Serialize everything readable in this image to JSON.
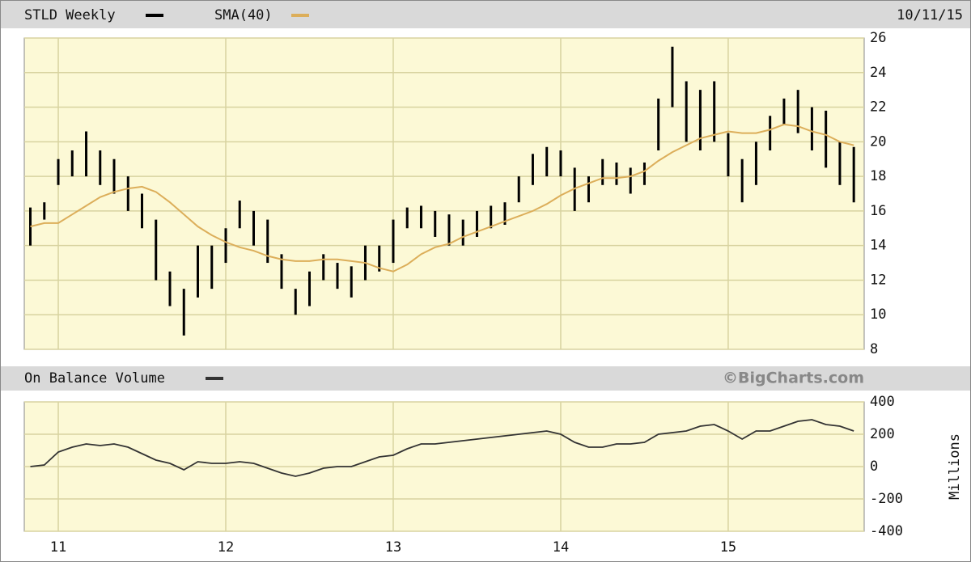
{
  "chart_data": [
    {
      "type": "range",
      "date": "10/11/15",
      "x": [
        2010.8333,
        2010.9167,
        2011.0,
        2011.0833,
        2011.1667,
        2011.25,
        2011.3333,
        2011.4167,
        2011.5,
        2011.5833,
        2011.6667,
        2011.75,
        2011.8333,
        2011.9167,
        2012.0,
        2012.0833,
        2012.1667,
        2012.25,
        2012.3333,
        2012.4167,
        2012.5,
        2012.5833,
        2012.6667,
        2012.75,
        2012.8333,
        2012.9167,
        2013.0,
        2013.0833,
        2013.1667,
        2013.25,
        2013.3333,
        2013.4167,
        2013.5,
        2013.5833,
        2013.6667,
        2013.75,
        2013.8333,
        2013.9167,
        2014.0,
        2014.0833,
        2014.1667,
        2014.25,
        2014.3333,
        2014.4167,
        2014.5,
        2014.5833,
        2014.6667,
        2014.75,
        2014.8333,
        2014.9167,
        2015.0,
        2015.0833,
        2015.1667,
        2015.25,
        2015.3333,
        2015.4167,
        2015.5,
        2015.5833,
        2015.6667,
        2015.75
      ],
      "xlim": [
        2010.797,
        2015.812
      ],
      "series": [
        {
          "name": "STLD Weekly",
          "color": "#000000",
          "high": [
            16.2,
            16.5,
            19,
            19.5,
            20.6,
            19.5,
            19,
            18,
            17,
            15.5,
            12.5,
            11.5,
            14,
            14,
            15,
            16.6,
            16,
            15.5,
            13.5,
            11.5,
            12.5,
            13.5,
            13,
            12.8,
            14,
            14,
            15.5,
            16.2,
            16.3,
            16,
            15.8,
            15.5,
            16,
            16.3,
            16.5,
            18,
            19.3,
            19.7,
            19.5,
            18.5,
            18,
            19,
            18.8,
            18.5,
            18.8,
            22.5,
            25.5,
            23.5,
            23,
            23.5,
            20.5,
            19,
            20,
            21.5,
            22.5,
            23,
            22,
            21.8,
            20,
            19.7
          ],
          "low": [
            14,
            15.5,
            17.5,
            18,
            18,
            17.5,
            17,
            16,
            15,
            12,
            10.5,
            8.8,
            11,
            11.5,
            13,
            15,
            14,
            13,
            11.5,
            10,
            10.5,
            12,
            11.5,
            11,
            12,
            12.5,
            13,
            15,
            15,
            14.5,
            14,
            14,
            14.5,
            15,
            15.2,
            16.5,
            17.5,
            18,
            18,
            16,
            16.5,
            17.5,
            17.5,
            17,
            17.5,
            19.5,
            22,
            20,
            19.5,
            20,
            18,
            16.5,
            17.5,
            19.5,
            21,
            20.5,
            19.5,
            18.5,
            17.5,
            16.5
          ]
        },
        {
          "name": "SMA(40)",
          "color": "#dcae5a",
          "values": [
            15.1,
            15.3,
            15.3,
            15.8,
            16.3,
            16.8,
            17.1,
            17.3,
            17.4,
            17.1,
            16.5,
            15.8,
            15.1,
            14.6,
            14.2,
            13.9,
            13.7,
            13.4,
            13.2,
            13.1,
            13.1,
            13.2,
            13.2,
            13.1,
            13.0,
            12.7,
            12.5,
            12.9,
            13.5,
            13.9,
            14.1,
            14.5,
            14.8,
            15.1,
            15.4,
            15.7,
            16.0,
            16.4,
            16.9,
            17.3,
            17.6,
            17.9,
            17.9,
            18.0,
            18.3,
            18.9,
            19.4,
            19.8,
            20.2,
            20.4,
            20.6,
            20.5,
            20.5,
            20.7,
            21.0,
            20.9,
            20.6,
            20.4,
            20.0,
            19.8
          ]
        }
      ],
      "ylim": [
        8,
        26
      ],
      "yticks": [
        8,
        10,
        12,
        14,
        16,
        18,
        20,
        22,
        24,
        26
      ],
      "grid": true
    },
    {
      "type": "line",
      "source": "©BigCharts.com",
      "ylabel": "Millions",
      "series": [
        {
          "name": "On Balance Volume",
          "color": "#333333",
          "values": [
            0,
            10,
            90,
            120,
            140,
            130,
            140,
            120,
            80,
            40,
            20,
            -20,
            30,
            20,
            20,
            30,
            20,
            -10,
            -40,
            -60,
            -40,
            -10,
            0,
            0,
            30,
            60,
            70,
            110,
            140,
            140,
            150,
            160,
            170,
            180,
            190,
            200,
            210,
            220,
            200,
            150,
            120,
            120,
            140,
            140,
            150,
            200,
            210,
            220,
            250,
            260,
            220,
            170,
            220,
            220,
            250,
            280,
            290,
            260,
            250,
            220
          ]
        }
      ],
      "ylim": [
        -400,
        400
      ],
      "yticks": [
        -400,
        -200,
        0,
        200,
        400
      ],
      "xticks": [
        {
          "value": 2011,
          "label": "11"
        },
        {
          "value": 2012,
          "label": "12"
        },
        {
          "value": 2013,
          "label": "13"
        },
        {
          "value": 2014,
          "label": "14"
        },
        {
          "value": 2015,
          "label": "15"
        }
      ],
      "grid": true
    }
  ]
}
